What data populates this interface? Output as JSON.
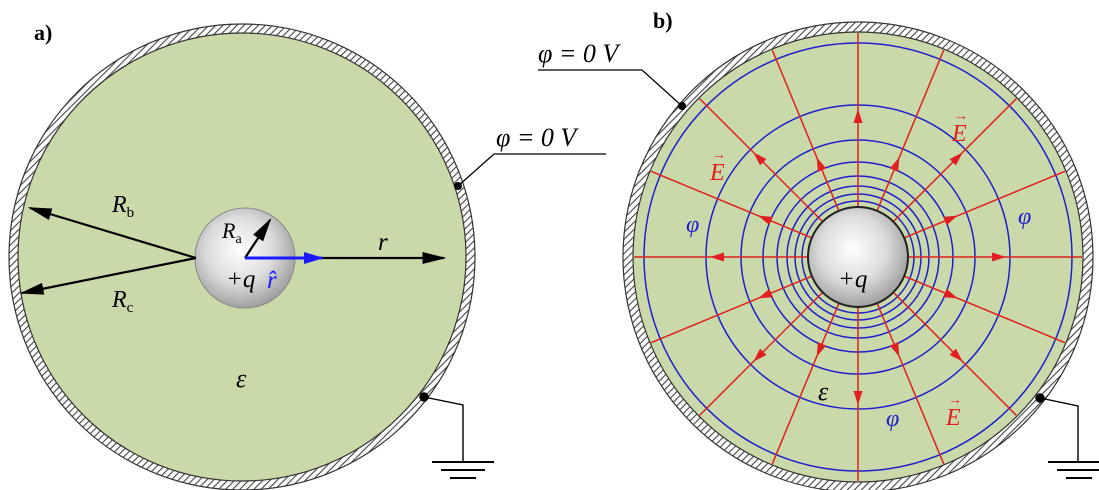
{
  "panel_a": {
    "label": "a)",
    "potential_label": "φ = 0 V",
    "charge_label": "+q",
    "permittivity_label": "ε",
    "radius_a": {
      "symbol": "R",
      "sub": "a"
    },
    "radius_b": {
      "symbol": "R",
      "sub": "b"
    },
    "radius_c": {
      "symbol": "R",
      "sub": "c"
    },
    "r_label": "r",
    "r_hat_label": "r̂"
  },
  "panel_b": {
    "label": "b)",
    "potential_label": "φ = 0 V",
    "charge_label": "+q",
    "permittivity_label": "ε",
    "field_label": "E",
    "field_arrow": "→",
    "phi_label": "φ"
  },
  "colors": {
    "dielectric": "#c9d9a9",
    "field_lines": "#e02020",
    "equipotentials": "#1f1fcc",
    "unit_vector": "#1a1aff",
    "shell": "#555555",
    "sphere_center": "#ffffff",
    "sphere_edge": "#9a9a9a"
  },
  "icons": [
    "ground-icon",
    "arrow-icon",
    "hatched-shell-icon"
  ]
}
